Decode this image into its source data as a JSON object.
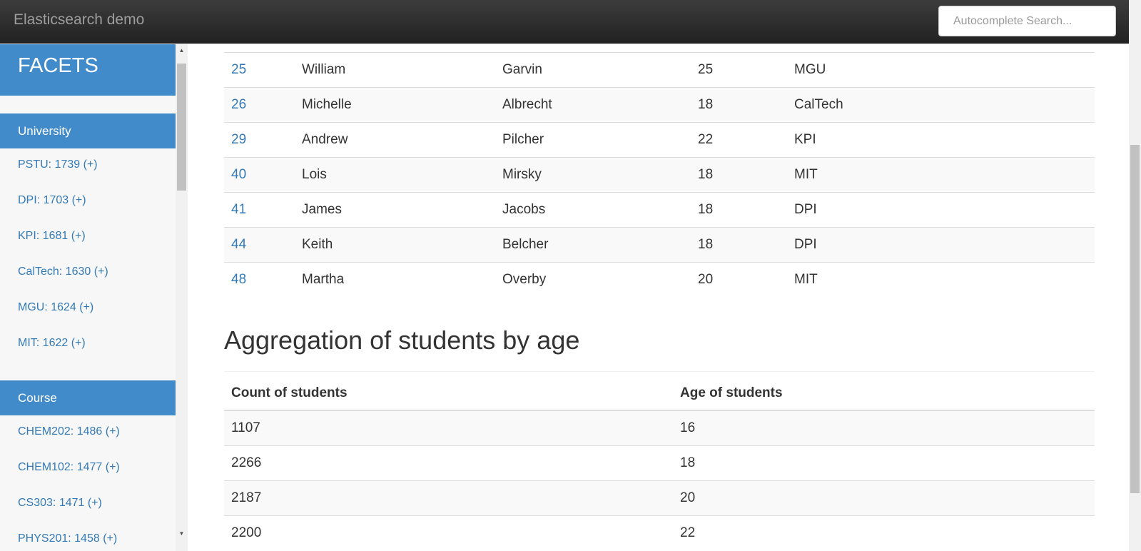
{
  "navbar": {
    "brand": "Elasticsearch demo",
    "search_placeholder": "Autocomplete Search..."
  },
  "sidebar": {
    "title": "FACETS",
    "groups": [
      {
        "header": "University",
        "items": [
          "PSTU: 1739 (+)",
          "DPI: 1703 (+)",
          "KPI: 1681 (+)",
          "CalTech: 1630 (+)",
          "MGU: 1624 (+)",
          "MIT: 1622 (+)"
        ]
      },
      {
        "header": "Course",
        "items": [
          "CHEM202: 1486 (+)",
          "CHEM102: 1477 (+)",
          "CS303: 1471 (+)",
          "PHYS201: 1458 (+)"
        ]
      }
    ]
  },
  "students": [
    {
      "id": "25",
      "first": "William",
      "last": "Garvin",
      "age": "25",
      "university": "MGU"
    },
    {
      "id": "26",
      "first": "Michelle",
      "last": "Albrecht",
      "age": "18",
      "university": "CalTech"
    },
    {
      "id": "29",
      "first": "Andrew",
      "last": "Pilcher",
      "age": "22",
      "university": "KPI"
    },
    {
      "id": "40",
      "first": "Lois",
      "last": "Mirsky",
      "age": "18",
      "university": "MIT"
    },
    {
      "id": "41",
      "first": "James",
      "last": "Jacobs",
      "age": "18",
      "university": "DPI"
    },
    {
      "id": "44",
      "first": "Keith",
      "last": "Belcher",
      "age": "18",
      "university": "DPI"
    },
    {
      "id": "48",
      "first": "Martha",
      "last": "Overby",
      "age": "20",
      "university": "MIT"
    }
  ],
  "aggregation": {
    "title": "Aggregation of students by age",
    "headers": [
      "Count of students",
      "Age of students"
    ],
    "rows": [
      {
        "count": "1107",
        "age": "16"
      },
      {
        "count": "2266",
        "age": "18"
      },
      {
        "count": "2187",
        "age": "20"
      },
      {
        "count": "2200",
        "age": "22"
      }
    ]
  }
}
